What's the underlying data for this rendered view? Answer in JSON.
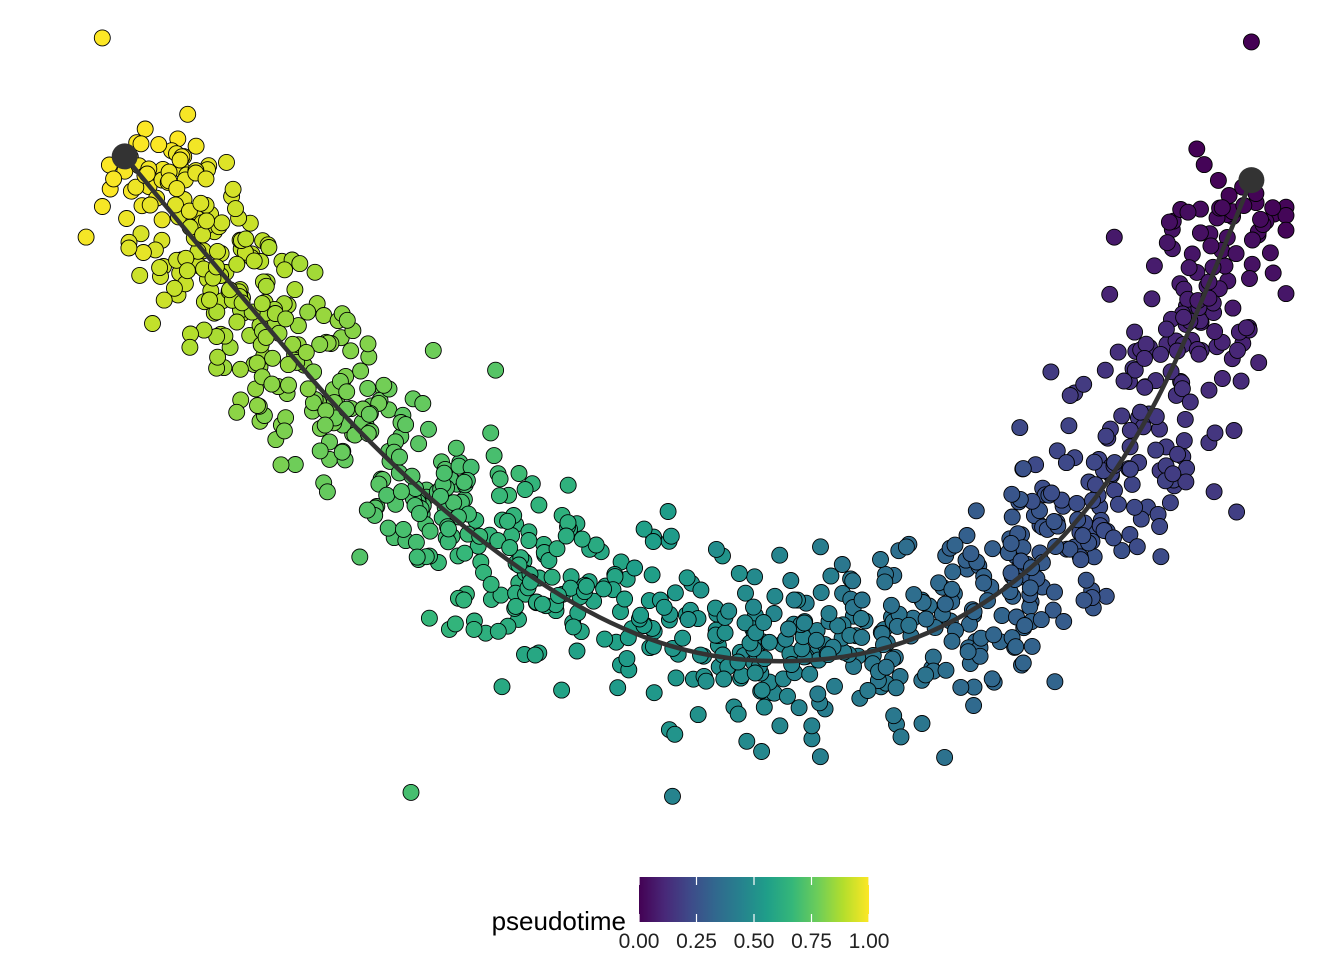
{
  "chart_data": {
    "type": "scatter",
    "title": "",
    "xlabel": "",
    "ylabel": "",
    "axes_visible": false,
    "grid": false,
    "color_variable": "pseudotime",
    "colormap": "viridis",
    "colormap_stops": [
      "#440154",
      "#482878",
      "#3E4A89",
      "#31688E",
      "#26828E",
      "#1F9E89",
      "#35B779",
      "#6DCD59",
      "#B4DE2C",
      "#FDE725"
    ],
    "point_outline_color": "#000000",
    "point_count_approx": 1000,
    "x_range": [
      0,
      1
    ],
    "y_range": [
      0,
      1
    ],
    "trajectory": {
      "color": "#333333",
      "start": {
        "x": 0.06,
        "y": 0.84
      },
      "end": {
        "x": 0.965,
        "y": 0.81
      },
      "path": [
        {
          "x": 0.06,
          "y": 0.84
        },
        {
          "x": 0.15,
          "y": 0.67
        },
        {
          "x": 0.25,
          "y": 0.49
        },
        {
          "x": 0.35,
          "y": 0.35
        },
        {
          "x": 0.45,
          "y": 0.25
        },
        {
          "x": 0.545,
          "y": 0.205
        },
        {
          "x": 0.65,
          "y": 0.21
        },
        {
          "x": 0.74,
          "y": 0.265
        },
        {
          "x": 0.82,
          "y": 0.37
        },
        {
          "x": 0.89,
          "y": 0.535
        },
        {
          "x": 0.965,
          "y": 0.81
        }
      ]
    },
    "outlier_points": [
      {
        "x": 0.042,
        "y": 0.99,
        "pseudotime": 1.0
      },
      {
        "x": 0.965,
        "y": 0.985,
        "pseudotime": 0.0
      },
      {
        "x": 0.29,
        "y": 0.035,
        "pseudotime": 0.7
      },
      {
        "x": 0.5,
        "y": 0.03,
        "pseudotime": 0.45
      }
    ],
    "legend": {
      "title": "pseudotime",
      "placement": "bottom",
      "ticks": [
        0.0,
        0.25,
        0.5,
        0.75,
        1.0
      ],
      "tick_labels": [
        "0.00",
        "0.25",
        "0.50",
        "0.75",
        "1.00"
      ]
    }
  }
}
